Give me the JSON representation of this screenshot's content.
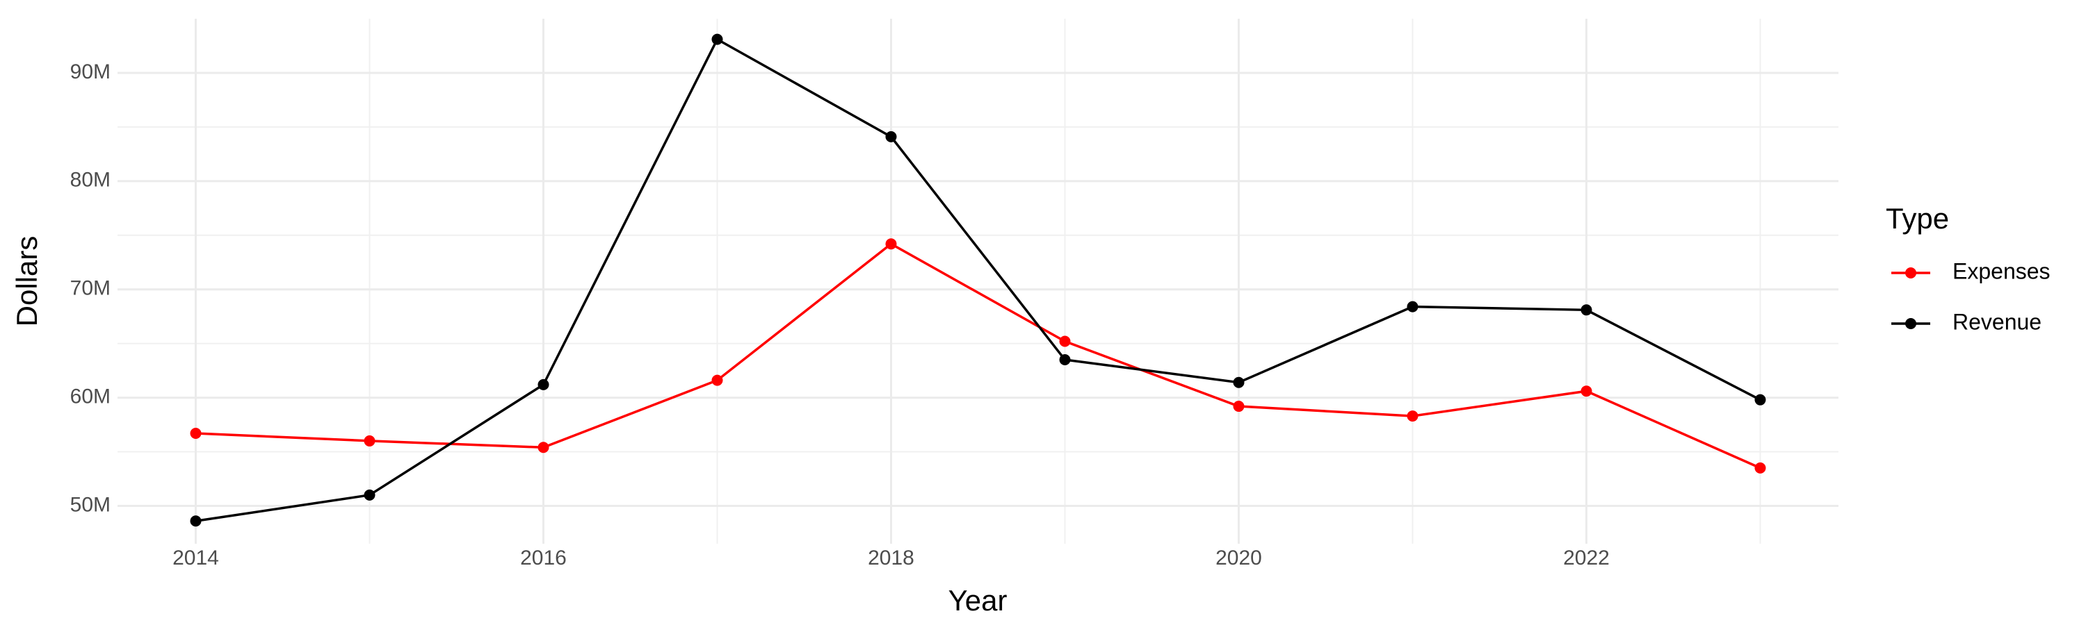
{
  "chart_data": {
    "type": "line",
    "x_label": "Year",
    "y_label": "Dollars",
    "legend_title": "Type",
    "x": [
      2014,
      2015,
      2016,
      2017,
      2018,
      2019,
      2020,
      2021,
      2022,
      2023
    ],
    "series": [
      {
        "name": "Expenses",
        "color": "#ff0000",
        "values": [
          56700000,
          56000000,
          55400000,
          61600000,
          74200000,
          65200000,
          59200000,
          58300000,
          60600000,
          53500000
        ]
      },
      {
        "name": "Revenue",
        "color": "#000000",
        "values": [
          48600000,
          51000000,
          61200000,
          93100000,
          84100000,
          63500000,
          61400000,
          68400000,
          68100000,
          59800000
        ]
      }
    ],
    "xlim": [
      2013.55,
      2023.45
    ],
    "xticks": [
      2014,
      2016,
      2018,
      2020,
      2022
    ],
    "ylim": [
      46500000,
      95000000
    ],
    "yticks": [
      {
        "value": 50000000,
        "label": "50M"
      },
      {
        "value": 60000000,
        "label": "60M"
      },
      {
        "value": 70000000,
        "label": "70M"
      },
      {
        "value": 80000000,
        "label": "80M"
      },
      {
        "value": 90000000,
        "label": "90M"
      }
    ],
    "grid": true,
    "legend_position": "right"
  }
}
